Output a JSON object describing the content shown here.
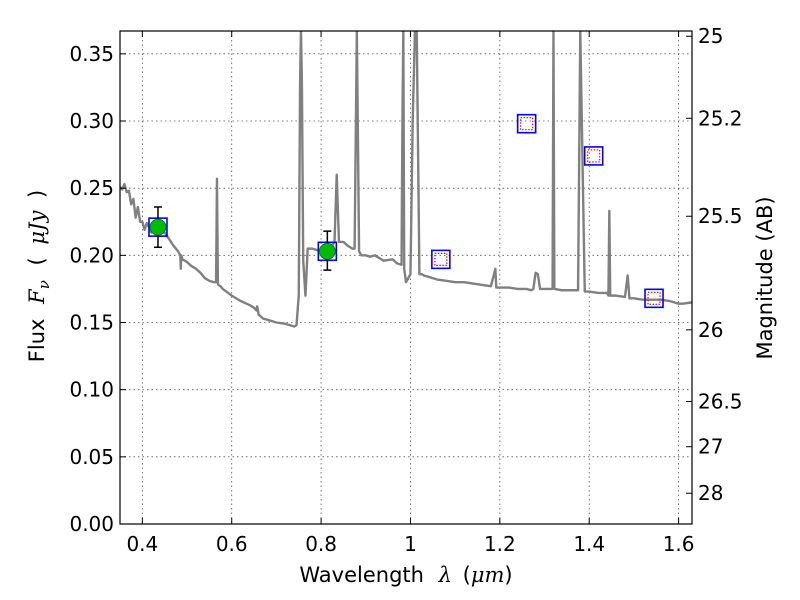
{
  "chart_data": {
    "type": "line",
    "xlabel": {
      "prefix": "Wavelength",
      "symbol": "λ",
      "unit_open": "(",
      "unit": "μm",
      "unit_close": ")"
    },
    "ylabel": {
      "prefix": "Flux",
      "symbol": "F",
      "subscript": "ν",
      "unit_open": "(",
      "unit": "μJy",
      "unit_close": ")"
    },
    "y2label": "Magnitude (AB)",
    "xlim": [
      0.35,
      1.63
    ],
    "ylim": [
      0.0,
      0.367
    ],
    "grid": true,
    "x_ticks": [
      {
        "value": 0.4,
        "label": "0.4"
      },
      {
        "value": 0.6,
        "label": "0.6"
      },
      {
        "value": 0.8,
        "label": "0.8"
      },
      {
        "value": 1.0,
        "label": "1"
      },
      {
        "value": 1.2,
        "label": "1.2"
      },
      {
        "value": 1.4,
        "label": "1.4"
      },
      {
        "value": 1.6,
        "label": "1.6"
      }
    ],
    "y_ticks": [
      {
        "value": 0.0,
        "label": "0.00"
      },
      {
        "value": 0.05,
        "label": "0.05"
      },
      {
        "value": 0.1,
        "label": "0.10"
      },
      {
        "value": 0.15,
        "label": "0.15"
      },
      {
        "value": 0.2,
        "label": "0.20"
      },
      {
        "value": 0.25,
        "label": "0.25"
      },
      {
        "value": 0.3,
        "label": "0.30"
      },
      {
        "value": 0.35,
        "label": "0.35"
      }
    ],
    "y2_ticks": [
      {
        "value": 25,
        "label": "25"
      },
      {
        "value": 25.2,
        "label": "25.2"
      },
      {
        "value": 25.5,
        "label": "25.5"
      },
      {
        "value": 26,
        "label": "26"
      },
      {
        "value": 26.5,
        "label": "26.5"
      },
      {
        "value": 27,
        "label": "27"
      },
      {
        "value": 28,
        "label": "28"
      }
    ],
    "series": [
      {
        "kind": "model_sed",
        "color": "#808080",
        "x": [
          0.35,
          0.355,
          0.36,
          0.365,
          0.37,
          0.375,
          0.38,
          0.385,
          0.39,
          0.395,
          0.4,
          0.405,
          0.41,
          0.415,
          0.42,
          0.43,
          0.44,
          0.45,
          0.46,
          0.47,
          0.48,
          0.485,
          0.486,
          0.487,
          0.49,
          0.5,
          0.51,
          0.52,
          0.53,
          0.54,
          0.55,
          0.56,
          0.565,
          0.567,
          0.569,
          0.57,
          0.575,
          0.58,
          0.6,
          0.62,
          0.64,
          0.65,
          0.655,
          0.657,
          0.659,
          0.66,
          0.67,
          0.68,
          0.7,
          0.72,
          0.74,
          0.745,
          0.75,
          0.753,
          0.755,
          0.757,
          0.76,
          0.765,
          0.77,
          0.78,
          0.79,
          0.8,
          0.81,
          0.82,
          0.83,
          0.835,
          0.84,
          0.85,
          0.86,
          0.87,
          0.875,
          0.88,
          0.885,
          0.89,
          0.895,
          0.9,
          0.91,
          0.92,
          0.94,
          0.96,
          0.97,
          0.98,
          0.982,
          0.984,
          0.986,
          0.99,
          1.0,
          1.005,
          1.01,
          1.014,
          1.02,
          1.025,
          1.03,
          1.04,
          1.06,
          1.08,
          1.1,
          1.12,
          1.14,
          1.16,
          1.18,
          1.19,
          1.192,
          1.194,
          1.2,
          1.22,
          1.24,
          1.26,
          1.27,
          1.275,
          1.28,
          1.285,
          1.29,
          1.3,
          1.31,
          1.318,
          1.32,
          1.322,
          1.34,
          1.36,
          1.37,
          1.375,
          1.38,
          1.39,
          1.4,
          1.42,
          1.44,
          1.443,
          1.445,
          1.447,
          1.45,
          1.46,
          1.48,
          1.486,
          1.49,
          1.5,
          1.52,
          1.54,
          1.56,
          1.58,
          1.6,
          1.61,
          1.63
        ],
        "y": [
          0.251,
          0.249,
          0.253,
          0.247,
          0.248,
          0.238,
          0.242,
          0.228,
          0.236,
          0.225,
          0.225,
          0.219,
          0.224,
          0.221,
          0.217,
          0.225,
          0.219,
          0.217,
          0.212,
          0.207,
          0.203,
          0.2,
          0.19,
          0.2,
          0.197,
          0.195,
          0.192,
          0.19,
          0.187,
          0.183,
          0.181,
          0.18,
          0.18,
          0.257,
          0.18,
          0.178,
          0.177,
          0.175,
          0.17,
          0.166,
          0.163,
          0.161,
          0.159,
          0.162,
          0.158,
          0.156,
          0.153,
          0.152,
          0.15,
          0.149,
          0.147,
          0.148,
          0.17,
          0.33,
          0.367,
          0.33,
          0.196,
          0.17,
          0.205,
          0.205,
          0.204,
          0.203,
          0.202,
          0.205,
          0.21,
          0.26,
          0.21,
          0.21,
          0.207,
          0.205,
          0.205,
          0.367,
          0.203,
          0.2,
          0.2,
          0.2,
          0.199,
          0.2,
          0.196,
          0.197,
          0.194,
          0.193,
          0.3,
          0.367,
          0.19,
          0.18,
          0.186,
          0.3,
          0.367,
          0.367,
          0.186,
          0.186,
          0.185,
          0.184,
          0.182,
          0.181,
          0.18,
          0.18,
          0.179,
          0.178,
          0.177,
          0.19,
          0.176,
          0.176,
          0.176,
          0.176,
          0.175,
          0.175,
          0.174,
          0.175,
          0.187,
          0.186,
          0.175,
          0.175,
          0.175,
          0.175,
          0.367,
          0.175,
          0.174,
          0.174,
          0.174,
          0.174,
          0.367,
          0.173,
          0.173,
          0.172,
          0.172,
          0.17,
          0.233,
          0.17,
          0.17,
          0.17,
          0.169,
          0.185,
          0.168,
          0.168,
          0.167,
          0.167,
          0.167,
          0.166,
          0.164,
          0.164,
          0.165
        ]
      },
      {
        "kind": "observed",
        "color": "#00bb00",
        "points": [
          {
            "x": 0.435,
            "y": 0.221,
            "yerr_low": 0.206,
            "yerr_high": 0.236
          },
          {
            "x": 0.814,
            "y": 0.203,
            "yerr_low": 0.189,
            "yerr_high": 0.218
          }
        ]
      },
      {
        "kind": "model_photometry",
        "color": "#0000ff",
        "points": [
          {
            "x": 0.435,
            "y": 0.221
          },
          {
            "x": 0.814,
            "y": 0.203
          },
          {
            "x": 1.068,
            "y": 0.197
          },
          {
            "x": 1.26,
            "y": 0.298
          },
          {
            "x": 1.41,
            "y": 0.274
          },
          {
            "x": 1.545,
            "y": 0.168
          }
        ]
      },
      {
        "kind": "limits",
        "color": "#ff0000",
        "points": [
          {
            "x": 1.068,
            "y": 0.197
          },
          {
            "x": 1.26,
            "y": 0.298
          },
          {
            "x": 1.41,
            "y": 0.274
          },
          {
            "x": 1.545,
            "y": 0.168
          }
        ]
      }
    ]
  }
}
